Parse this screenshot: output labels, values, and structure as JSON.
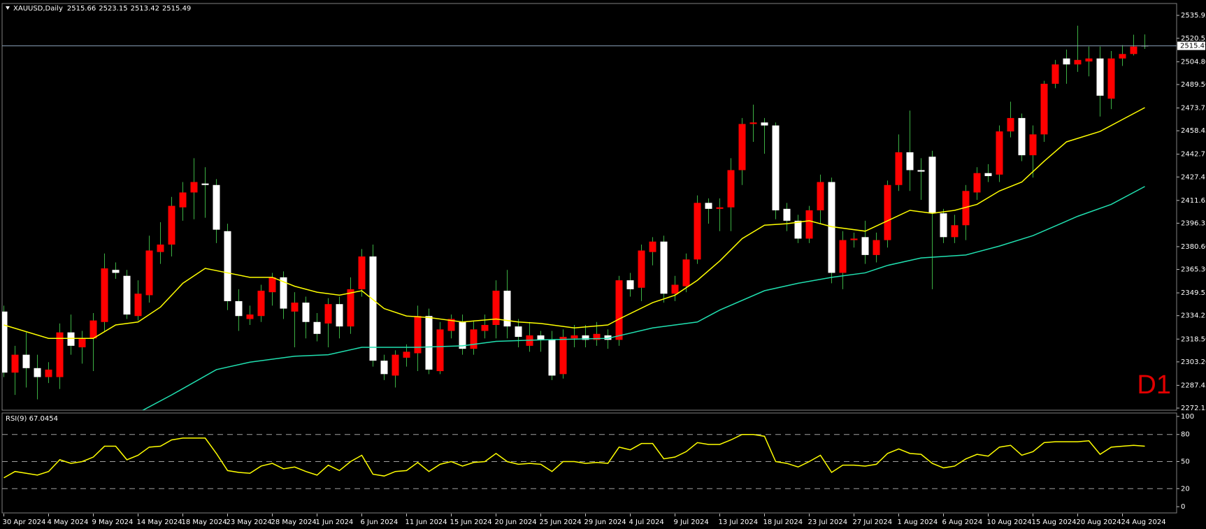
{
  "header": {
    "symbol": "XAUUSD,Daily"
  },
  "chart_data": [
    {
      "type": "candlestick",
      "categories": [
        "30 Apr 2024",
        null,
        null,
        null,
        "4 May 2024",
        null,
        null,
        null,
        "9 May 2024",
        null,
        null,
        null,
        "14 May 2024",
        null,
        null,
        null,
        "18 May 2024",
        null,
        null,
        null,
        "23 May 2024",
        null,
        null,
        null,
        "28 May 2024",
        null,
        null,
        null,
        "1 Jun 2024",
        null,
        null,
        null,
        "6 Jun 2024",
        null,
        null,
        null,
        "11 Jun 2024",
        null,
        null,
        null,
        "15 Jun 2024",
        null,
        null,
        null,
        "20 Jun 2024",
        null,
        null,
        null,
        "25 Jun 2024",
        null,
        null,
        null,
        "29 Jun 2024",
        null,
        null,
        null,
        "4 Jul 2024",
        null,
        null,
        null,
        "9 Jul 2024",
        null,
        null,
        null,
        "13 Jul 2024",
        null,
        null,
        null,
        "18 Jul 2024",
        null,
        null,
        null,
        "23 Jul 2024",
        null,
        null,
        null,
        "27 Jul 2024",
        null,
        null,
        null,
        "1 Aug 2024",
        null,
        null,
        null,
        "6 Aug 2024",
        null,
        null,
        null,
        "10 Aug 2024",
        null,
        null,
        null,
        "15 Aug 2024",
        null,
        null,
        null,
        "20 Aug 2024",
        null,
        null,
        null,
        "24 Aug 2024",
        null,
        null
      ],
      "open": [
        2337,
        2296,
        2308,
        2299,
        2293,
        2293,
        2323,
        2313,
        2319,
        2330,
        2365,
        2361,
        2334,
        2348,
        2377,
        2382,
        2407,
        2417,
        2423,
        2422,
        2391,
        2344,
        2332,
        2334,
        2350,
        2360,
        2337,
        2343,
        2330,
        2329,
        2342,
        2327,
        2352,
        2374,
        2304,
        2294,
        2306,
        2309,
        2334,
        2297,
        2324,
        2330,
        2312,
        2324,
        2328,
        2351,
        2327,
        2314,
        2321,
        2318,
        2295,
        2319,
        2321,
        2318,
        2321,
        2318,
        2358,
        2353,
        2377,
        2384,
        2349,
        2354,
        2372,
        2410,
        2406,
        2407,
        2432,
        2463,
        2464,
        2462,
        2406,
        2398,
        2386,
        2405,
        2424,
        2363,
        2385,
        2387,
        2375,
        2385,
        2422,
        2444,
        2432,
        2441,
        2403,
        2387,
        2395,
        2417,
        2430,
        2429,
        2458,
        2467,
        2442,
        2456,
        2490,
        2507,
        2503,
        2505,
        2507,
        2480,
        2507,
        2510,
        2515.66
      ],
      "high": [
        2341,
        2314,
        2323,
        2308,
        2303,
        2329,
        2335,
        2324,
        2336,
        2376,
        2370,
        2365,
        2358,
        2388,
        2397,
        2414,
        2424,
        2440,
        2434,
        2426,
        2396,
        2352,
        2341,
        2355,
        2363,
        2364,
        2350,
        2347,
        2336,
        2346,
        2347,
        2360,
        2379,
        2382,
        2308,
        2311,
        2315,
        2341,
        2339,
        2330,
        2335,
        2335,
        2331,
        2335,
        2358,
        2365,
        2332,
        2330,
        2324,
        2324,
        2325,
        2328,
        2328,
        2330,
        2325,
        2361,
        2363,
        2382,
        2387,
        2388,
        2361,
        2376,
        2415,
        2413,
        2413,
        2440,
        2467,
        2476,
        2467,
        2464,
        2410,
        2402,
        2408,
        2429,
        2427,
        2391,
        2390,
        2398,
        2390,
        2425,
        2456,
        2472,
        2440,
        2445,
        2406,
        2402,
        2422,
        2434,
        2436,
        2462,
        2478,
        2470,
        2462,
        2492,
        2506,
        2513,
        2529,
        2515,
        2515,
        2512,
        2516,
        2523,
        2523.15
      ],
      "low": [
        2293,
        2281,
        2286,
        2278,
        2289,
        2285,
        2308,
        2302,
        2297,
        2324,
        2359,
        2332,
        2331,
        2343,
        2369,
        2374,
        2398,
        2399,
        2400,
        2383,
        2338,
        2324,
        2328,
        2330,
        2341,
        2332,
        2313,
        2319,
        2317,
        2313,
        2319,
        2322,
        2347,
        2300,
        2291,
        2286,
        2300,
        2297,
        2295,
        2295,
        2319,
        2308,
        2308,
        2319,
        2319,
        2319,
        2313,
        2310,
        2310,
        2291,
        2292,
        2313,
        2313,
        2314,
        2312,
        2314,
        2347,
        2344,
        2368,
        2343,
        2344,
        2350,
        2369,
        2396,
        2391,
        2391,
        2422,
        2451,
        2443,
        2399,
        2391,
        2383,
        2383,
        2396,
        2356,
        2352,
        2380,
        2369,
        2370,
        2380,
        2418,
        2418,
        2412,
        2352,
        2383,
        2383,
        2385,
        2412,
        2424,
        2424,
        2454,
        2438,
        2427,
        2451,
        2487,
        2490,
        2498,
        2495,
        2468,
        2473,
        2502,
        2509,
        2513.42
      ],
      "close": [
        2296,
        2308,
        2299,
        2293,
        2298,
        2323,
        2314,
        2319,
        2331,
        2366,
        2363,
        2335,
        2349,
        2378,
        2382,
        2408,
        2417,
        2424,
        2422,
        2392,
        2344,
        2334,
        2335,
        2351,
        2360,
        2339,
        2343,
        2330,
        2322,
        2342,
        2327,
        2352,
        2374,
        2304,
        2295,
        2308,
        2310,
        2334,
        2298,
        2325,
        2332,
        2312,
        2325,
        2328,
        2351,
        2327,
        2320,
        2321,
        2318,
        2294,
        2320,
        2321,
        2318,
        2322,
        2318,
        2358,
        2352,
        2378,
        2384,
        2349,
        2355,
        2372,
        2410,
        2406,
        2407,
        2432,
        2463,
        2464,
        2462,
        2405,
        2398,
        2386,
        2405,
        2424,
        2363,
        2385,
        2386,
        2375,
        2385,
        2422,
        2444,
        2432,
        2431,
        2403,
        2387,
        2395,
        2418,
        2430,
        2428,
        2458,
        2467,
        2442,
        2456,
        2490,
        2503,
        2503,
        2506,
        2507,
        2482,
        2507,
        2510,
        2515,
        2515.49
      ],
      "up_color": "#ff0000",
      "down_color": "#ffffff",
      "wick_color": "#3cb043",
      "overlays": [
        {
          "color": "#ffff00",
          "x": [
            0,
            4,
            8,
            10,
            12,
            14,
            16,
            18,
            20,
            22,
            24,
            26,
            28,
            30,
            32,
            34,
            36,
            38,
            41,
            44,
            46,
            48,
            51,
            54,
            55,
            58,
            60,
            62,
            64,
            66,
            68,
            70,
            72,
            74,
            77,
            79,
            81,
            83,
            85,
            87,
            89,
            91,
            93,
            95,
            98,
            100,
            102
          ],
          "values": [
            2328,
            2319,
            2319,
            2328,
            2330,
            2340,
            2356,
            2366,
            2363,
            2360,
            2360,
            2354,
            2350,
            2348,
            2351,
            2339,
            2334,
            2333,
            2330,
            2332,
            2330,
            2329,
            2326,
            2328,
            2332,
            2343,
            2348,
            2358,
            2371,
            2386,
            2395,
            2396,
            2398,
            2394,
            2391,
            2398,
            2405,
            2403,
            2405,
            2409,
            2418,
            2424,
            2438,
            2451,
            2458,
            2466,
            2474
          ]
        },
        {
          "color": "#20e0b0",
          "x": [
            12,
            15,
            19,
            22,
            26,
            29,
            32,
            37,
            41,
            44,
            48,
            54,
            58,
            62,
            64,
            68,
            71,
            74,
            77,
            79,
            82,
            86,
            89,
            92,
            96,
            99,
            102
          ],
          "values": [
            2269,
            2281,
            2298,
            2303,
            2307,
            2308,
            2313,
            2313,
            2314,
            2317,
            2318,
            2319,
            2326,
            2330,
            2338,
            2351,
            2356,
            2360,
            2363,
            2368,
            2373,
            2375,
            2381,
            2388,
            2401,
            2409,
            2421
          ]
        }
      ],
      "ylim": [
        2270.74,
        2543.93
      ],
      "yticks": [
        2535.95,
        2520.55,
        {
          "value": 2504.8,
          "label": "2504.80"
        },
        {
          "value": 2489.5,
          "label": "2489.50"
        },
        2473.75,
        2458.45,
        2442.7,
        2427.4,
        2411.65,
        2396.35,
        {
          "value": 2380.6,
          "label": "2380.60"
        },
        {
          "value": 2365.3,
          "label": "2365.30"
        },
        2349.55,
        2334.25,
        {
          "value": 2318.5,
          "label": "2318.50"
        },
        {
          "value": 2303.2,
          "label": "2303.20"
        },
        2287.45,
        2272.15
      ],
      "annotation": "D1"
    },
    {
      "type": "line",
      "title": "RSI(9) 67.0454",
      "color": "#ffff00",
      "values": [
        32,
        39,
        37,
        35,
        39,
        52,
        48,
        50,
        55,
        67,
        67,
        52,
        57,
        66,
        67,
        74,
        76,
        76,
        76,
        59,
        40,
        38,
        37,
        45,
        48,
        42,
        44,
        39,
        35,
        46,
        40,
        50,
        57,
        36,
        34,
        39,
        40,
        49,
        39,
        47,
        50,
        45,
        49,
        50,
        59,
        50,
        47,
        48,
        47,
        39,
        50,
        50,
        48,
        49,
        48,
        66,
        63,
        70,
        70,
        53,
        55,
        61,
        71,
        69,
        69,
        74,
        80,
        80,
        78,
        50,
        48,
        44,
        50,
        57,
        38,
        46,
        46,
        45,
        47,
        59,
        64,
        59,
        58,
        48,
        43,
        45,
        53,
        58,
        56,
        66,
        68,
        57,
        61,
        71,
        72,
        72,
        72,
        73,
        58,
        66,
        67,
        68,
        67.0454
      ],
      "ylim": [
        -6.9,
        103.8
      ],
      "yticks": [
        100,
        80,
        50,
        20,
        0
      ],
      "levels": [
        80,
        50,
        20
      ]
    }
  ]
}
